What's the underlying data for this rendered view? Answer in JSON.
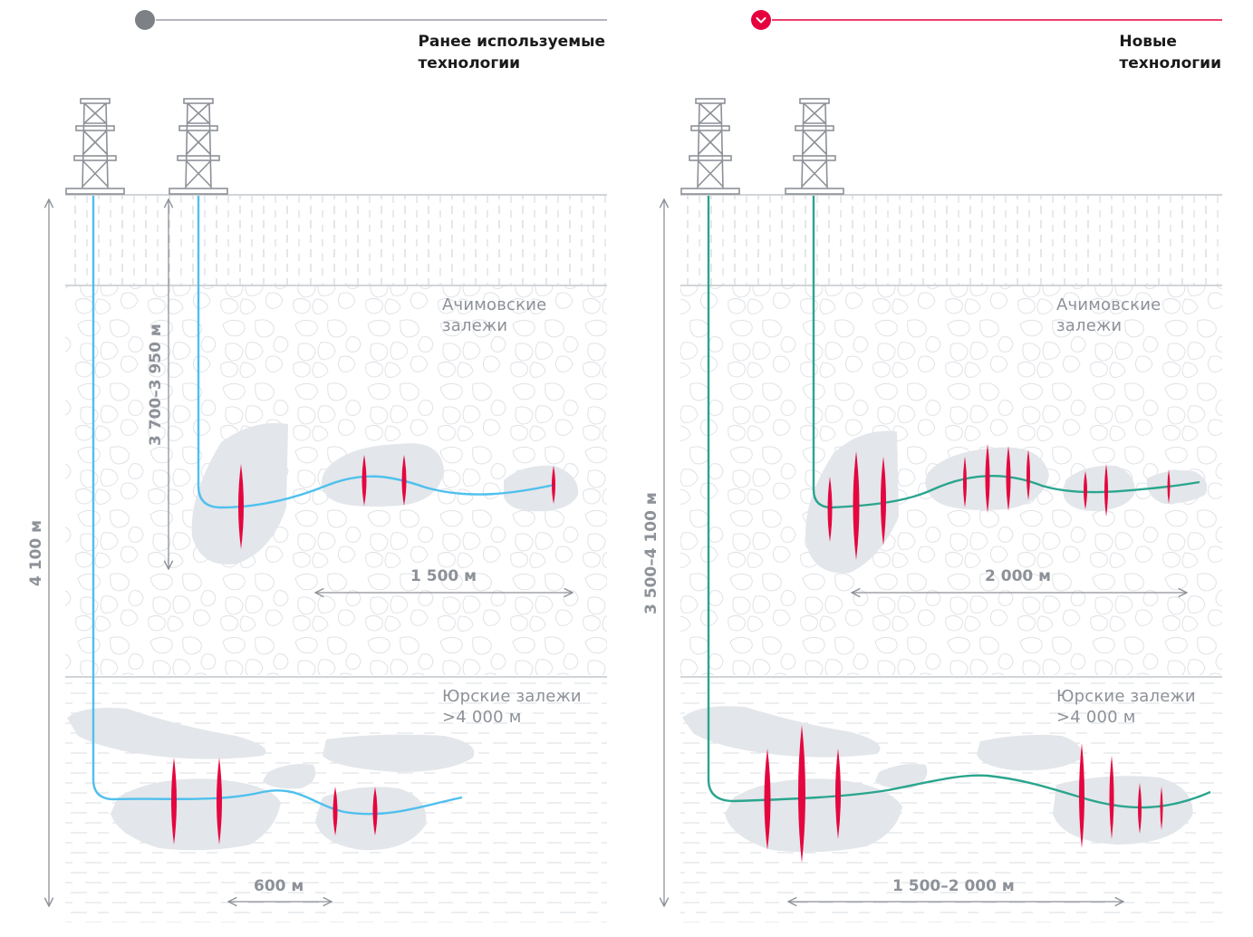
{
  "panels": {
    "old": {
      "heading": [
        "Ранее используемые",
        "технологии"
      ],
      "layer_upper": [
        "Ачимовские",
        "залежи"
      ],
      "layer_lower": [
        "Юрские залежи",
        ">4 000 м"
      ],
      "depth_total": "4 100 м",
      "depth_range": "3 700–3 950 м",
      "length_upper": "1 500 м",
      "length_lower": "600 м",
      "well_color": "#4fc0ee",
      "fracs_per_zone_upper": 3,
      "fracs_per_zone_lower": 4
    },
    "new": {
      "heading": [
        "Новые",
        "технологии"
      ],
      "layer_upper": [
        "Ачимовские",
        "залежи"
      ],
      "layer_lower": [
        "Юрские залежи",
        ">4 000 м"
      ],
      "depth_range": "3 500–4 100 м",
      "length_upper": "2 000 м",
      "length_lower": "1 500–2 000 м",
      "well_color": "#2aa58e",
      "fracs_per_zone_upper": 9,
      "fracs_per_zone_lower": 7
    }
  },
  "colors": {
    "accent": "#e5003e",
    "frac": "#e5063f",
    "deposit": "#e3e6ea",
    "grey_text": "#8d9198",
    "marker_grey": "#7d8186"
  },
  "icons": [
    "drilling-rig-icon",
    "circle-marker-icon",
    "chevron-down-icon"
  ]
}
